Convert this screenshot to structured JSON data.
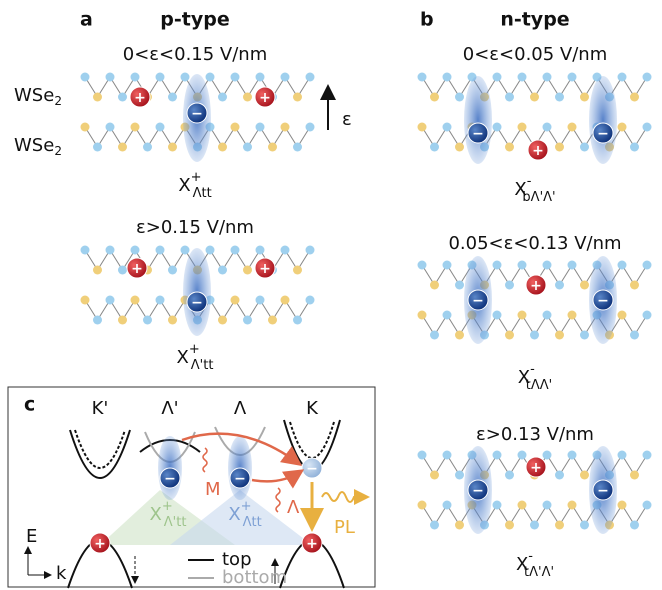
{
  "panel_a": {
    "letter": "a",
    "title": "p-type",
    "conditions": [
      "0<ε<0.15 V/nm",
      "ε>0.15 V/nm"
    ],
    "layer_label": {
      "base": "WSe",
      "sub": "2"
    },
    "field_label": "ε",
    "excitons": [
      {
        "base": "X",
        "sup": "+",
        "sub": "Λtt"
      },
      {
        "base": "X",
        "sup": "+",
        "sub": "Λ'tt"
      }
    ]
  },
  "panel_b": {
    "letter": "b",
    "title": "n-type",
    "conditions": [
      "0<ε<0.05 V/nm",
      "0.05<ε<0.13 V/nm",
      "ε>0.13 V/nm"
    ],
    "excitons": [
      {
        "base": "X",
        "sup": "-",
        "sub": "bΛ'Λ'"
      },
      {
        "base": "X",
        "sup": "-",
        "sub": "tΛΛ'"
      },
      {
        "base": "X",
        "sup": "-",
        "sub": "tΛ'Λ'"
      }
    ]
  },
  "panel_c": {
    "letter": "c",
    "valleys": [
      "K'",
      "Λ'",
      "Λ",
      "K"
    ],
    "transitions": [
      "M",
      "Λ"
    ],
    "emission": "PL",
    "excitons": [
      {
        "base": "X",
        "sup": "+",
        "sub": "Λ'tt"
      },
      {
        "base": "X",
        "sup": "+",
        "sub": "Λtt"
      }
    ],
    "axes": {
      "energy": "E",
      "momentum": "k"
    },
    "legend": [
      "top",
      "bottom"
    ]
  },
  "charges": {
    "hole": "+",
    "electron": "−"
  }
}
